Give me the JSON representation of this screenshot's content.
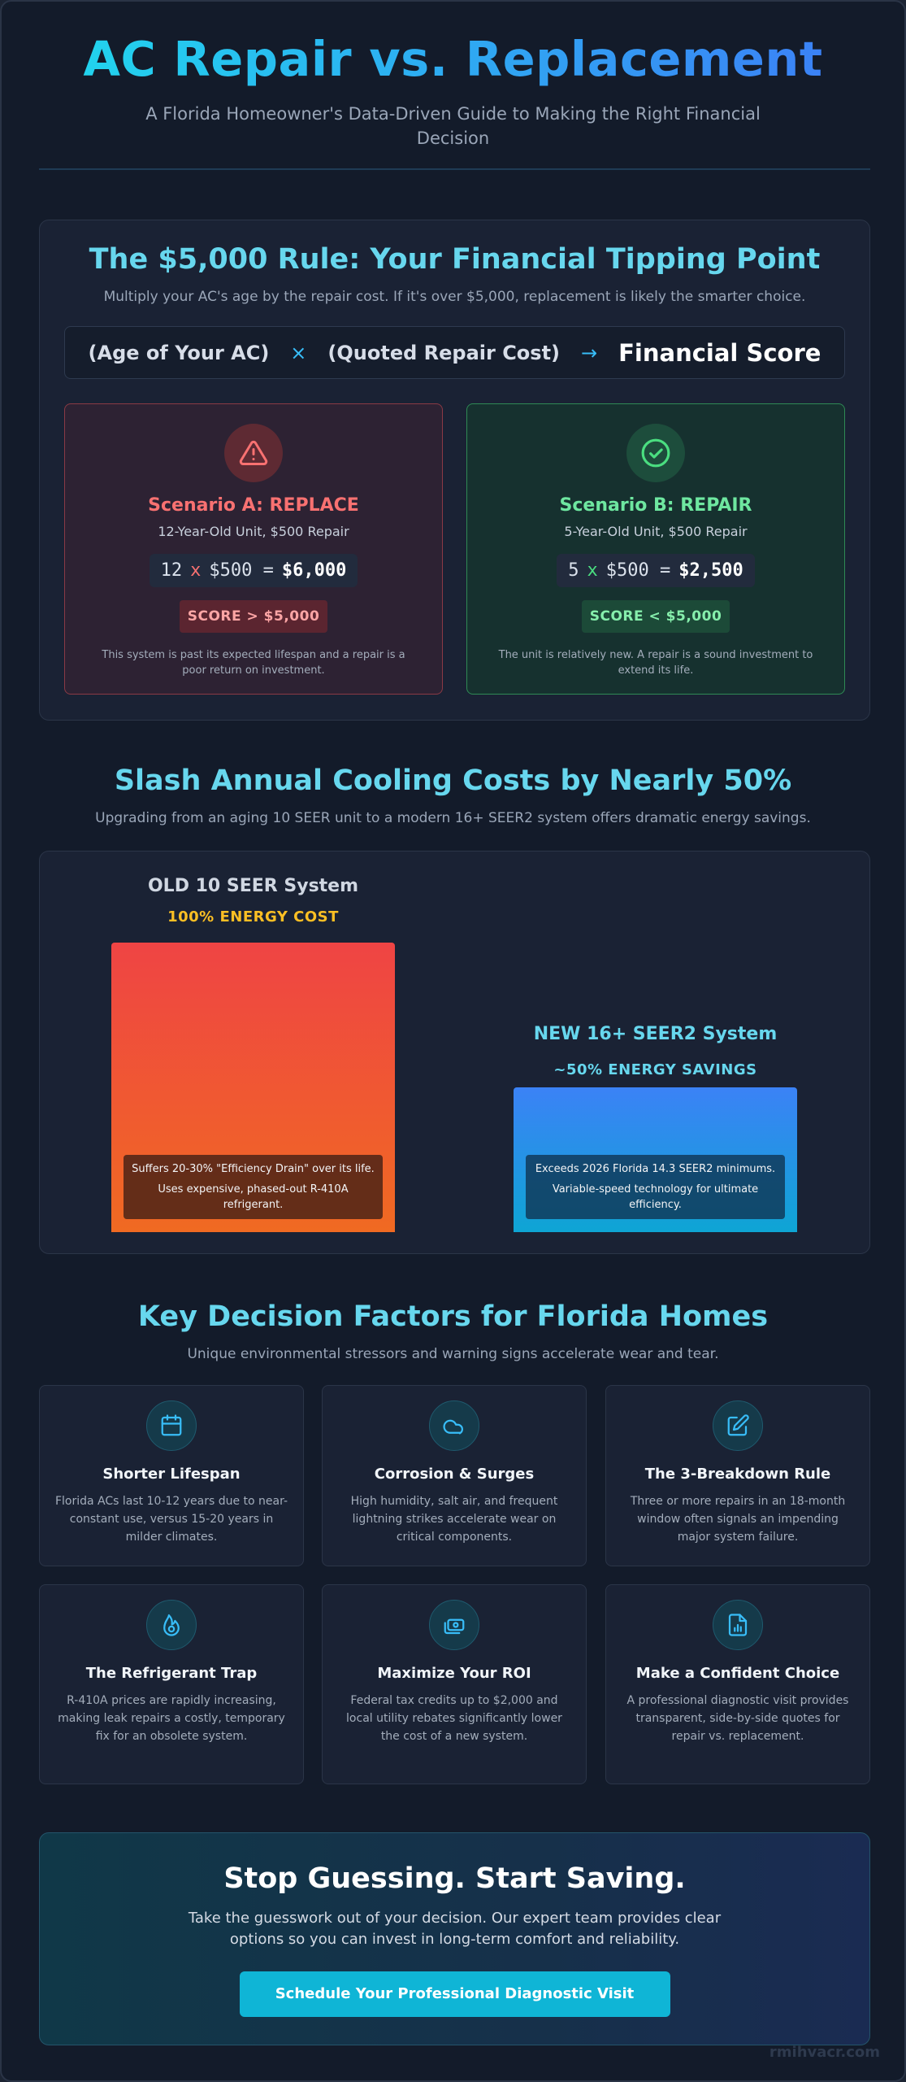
{
  "header": {
    "title": "AC Repair vs. Replacement",
    "subtitle": "A Florida Homeowner's Data-Driven Guide to Making the Right Financial Decision"
  },
  "rule": {
    "title": "The $5,000 Rule: Your Financial Tipping Point",
    "subtitle": "Multiply your AC's age by the repair cost. If it's over $5,000, replacement is likely the smarter choice.",
    "formula": {
      "term1": "(Age of Your AC)",
      "times": "×",
      "term2": "(Quoted Repair Cost)",
      "arrow": "→",
      "result": "Financial Score"
    },
    "scenario_a": {
      "icon": "warning-triangle-icon",
      "title": "Scenario A: REPLACE",
      "desc": "12-Year-Old Unit, $500 Repair",
      "calc_a": "12",
      "calc_x": "x",
      "calc_b": "$500 =",
      "calc_result": "$6,000",
      "score": "SCORE > $5,000",
      "note": "This system is past its expected lifespan and a repair is a poor return on investment.",
      "color": "#f87171"
    },
    "scenario_b": {
      "icon": "check-circle-icon",
      "title": "Scenario B: REPAIR",
      "desc": "5-Year-Old Unit, $500 Repair",
      "calc_a": "5",
      "calc_x": "x",
      "calc_b": "$500 =",
      "calc_result": "$2,500",
      "score": "SCORE < $5,000",
      "note": "The unit is relatively new. A repair is a sound investment to extend its life.",
      "color": "#4ade80"
    }
  },
  "energy": {
    "title": "Slash Annual Cooling Costs by Nearly 50%",
    "subtitle": "Upgrading from an aging 10 SEER unit to a modern 16+ SEER2 system offers dramatic energy savings.",
    "old": {
      "title": "OLD 10 SEER System",
      "pct_label": "100% ENERGY COST",
      "cost_fraction": 1.0,
      "note1": "Suffers 20-30% \"Efficiency Drain\" over its life.",
      "note2": "Uses expensive, phased-out R-410A refrigerant.",
      "color": "#fbbf24"
    },
    "new": {
      "title": "NEW 16+ SEER2 System",
      "pct_label": "~50% ENERGY SAVINGS",
      "cost_fraction": 0.5,
      "note1": "Exceeds 2026 Florida 14.3 SEER2 minimums.",
      "note2": "Variable-speed technology for ultimate efficiency.",
      "color": "#67d7ee"
    }
  },
  "factors": {
    "title": "Key Decision Factors for Florida Homes",
    "subtitle": "Unique environmental stressors and warning signs accelerate wear and tear.",
    "items": [
      {
        "icon": "calendar-icon",
        "title": "Shorter Lifespan",
        "desc": "Florida ACs last 10-12 years due to near-constant use, versus 15-20 years in milder climates."
      },
      {
        "icon": "cloud-icon",
        "title": "Corrosion & Surges",
        "desc": "High humidity, salt air, and frequent lightning strikes accelerate wear on critical components."
      },
      {
        "icon": "edit-icon",
        "title": "The 3-Breakdown Rule",
        "desc": "Three or more repairs in an 18-month window often signals an impending major system failure."
      },
      {
        "icon": "flame-icon",
        "title": "The Refrigerant Trap",
        "desc": "R-410A prices are rapidly increasing, making leak repairs a costly, temporary fix for an obsolete system."
      },
      {
        "icon": "money-icon",
        "title": "Maximize Your ROI",
        "desc": "Federal tax credits up to $2,000 and local utility rebates significantly lower the cost of a new system."
      },
      {
        "icon": "report-chart-icon",
        "title": "Make a Confident Choice",
        "desc": "A professional diagnostic visit provides transparent, side-by-side quotes for repair vs. replacement."
      }
    ]
  },
  "cta": {
    "title": "Stop Guessing. Start Saving.",
    "text": "Take the guesswork out of your decision. Our expert team provides clear options so you can invest in long-term comfort and reliability.",
    "button": "Schedule Your Professional Diagnostic Visit"
  },
  "watermark": "rmihvacr.com"
}
